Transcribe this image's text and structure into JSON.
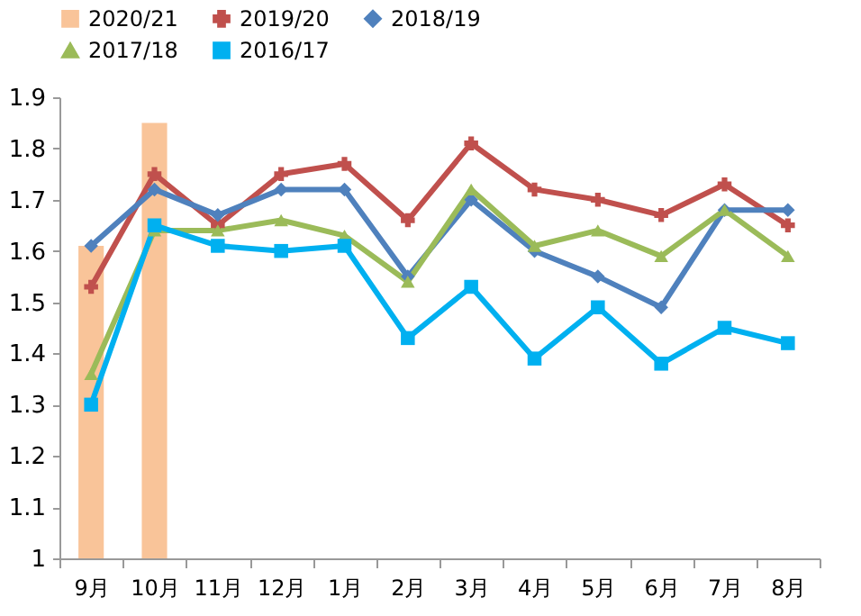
{
  "chart_data": {
    "type": "line",
    "categories": [
      "9月",
      "10月",
      "11月",
      "12月",
      "1月",
      "2月",
      "3月",
      "4月",
      "5月",
      "6月",
      "7月",
      "8月"
    ],
    "series": [
      {
        "name": "2020/21",
        "type": "bar",
        "color": "#f9c499",
        "values": [
          1.61,
          1.85,
          null,
          null,
          null,
          null,
          null,
          null,
          null,
          null,
          null,
          null
        ]
      },
      {
        "name": "2019/20",
        "color": "#c0504d",
        "marker": "cross",
        "values": [
          1.53,
          1.75,
          1.65,
          1.75,
          1.77,
          1.66,
          1.81,
          1.72,
          1.7,
          1.67,
          1.73,
          1.65
        ]
      },
      {
        "name": "2018/19",
        "color": "#4f81bd",
        "marker": "diamond",
        "values": [
          1.61,
          1.72,
          1.67,
          1.72,
          1.72,
          1.55,
          1.7,
          1.6,
          1.55,
          1.49,
          1.68,
          1.68
        ]
      },
      {
        "name": "2017/18",
        "color": "#9bbb59",
        "marker": "triangle",
        "values": [
          1.36,
          1.64,
          1.64,
          1.66,
          1.63,
          1.54,
          1.72,
          1.61,
          1.64,
          1.59,
          1.68,
          1.59
        ]
      },
      {
        "name": "2016/17",
        "color": "#00b0f0",
        "marker": "square",
        "values": [
          1.3,
          1.65,
          1.61,
          1.6,
          1.61,
          1.43,
          1.53,
          1.39,
          1.49,
          1.38,
          1.45,
          1.42
        ]
      }
    ],
    "ylim": [
      1,
      1.9
    ],
    "yticks": [
      1,
      1.1,
      1.2,
      1.3,
      1.4,
      1.5,
      1.6,
      1.7,
      1.8,
      1.9
    ],
    "grid": false,
    "legend": "top",
    "line_style": "solid"
  }
}
